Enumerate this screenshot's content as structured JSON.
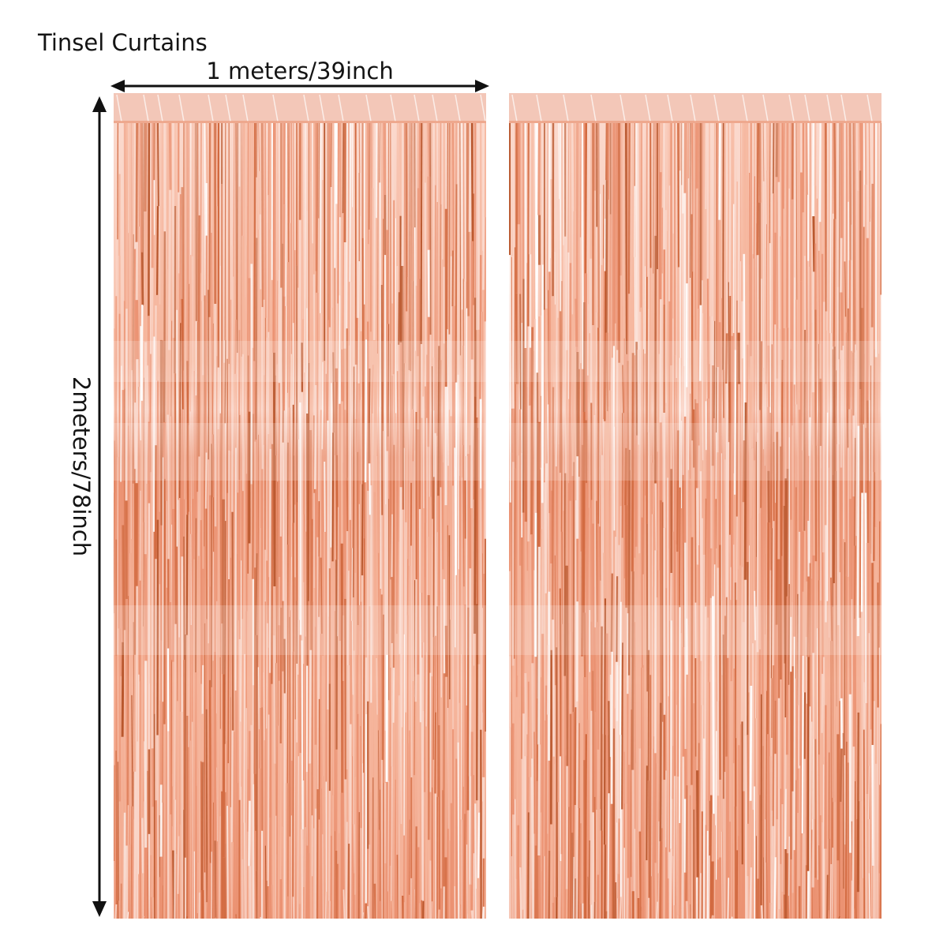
{
  "title": "Tinsel Curtains",
  "width_label": "1 meters/39inch",
  "height_label": "2meters/78inch",
  "colors": {
    "arrow": "#111111",
    "tinsel_pale": "#fbd9cd",
    "tinsel_light": "#f6b69d",
    "tinsel_mid": "#eb9272",
    "tinsel_deep": "#d26a40",
    "tinsel_rust": "#b9572d",
    "header": "#f3c7b8"
  },
  "curtains": [
    {
      "name": "curtain-left"
    },
    {
      "name": "curtain-right"
    }
  ]
}
